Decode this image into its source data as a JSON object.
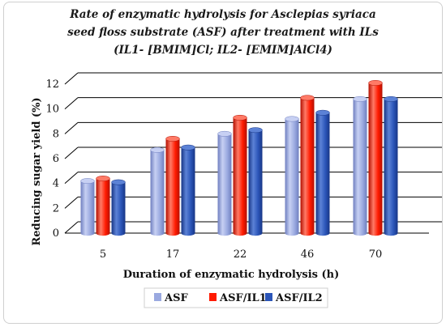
{
  "chart_data": {
    "type": "bar",
    "title_lines": [
      "Rate of enzymatic hydrolysis for Asclepias syriaca",
      "seed floss substrate (ASF) after treatment with ILs",
      "(IL1- [BMIM]Cl; IL2- [EMIM]AlCl4)"
    ],
    "xlabel": "Duration of enzymatic hydrolysis (h)",
    "ylabel": "Reducing sugar yield (%)",
    "categories": [
      "5",
      "17",
      "22",
      "46",
      "70"
    ],
    "series": [
      {
        "name": "ASF",
        "values": [
          4.2,
          6.7,
          8.0,
          9.2,
          10.8
        ],
        "color": "#9aa9e0",
        "dark": "#6f7fc0",
        "light": "#c7d0f3"
      },
      {
        "name": "ASF/IL1",
        "values": [
          4.4,
          7.6,
          9.3,
          10.9,
          12.1
        ],
        "color": "#ff1a00",
        "dark": "#b30f00",
        "light": "#ff7a66"
      },
      {
        "name": "ASF/IL2",
        "values": [
          4.1,
          6.9,
          8.3,
          9.7,
          10.8
        ],
        "color": "#2b55b8",
        "dark": "#173585",
        "light": "#5c82d6"
      }
    ],
    "ylim": [
      0,
      12
    ],
    "yticks": [
      0,
      2,
      4,
      6,
      8,
      10,
      12
    ],
    "grid": true,
    "legend": "bottom"
  }
}
